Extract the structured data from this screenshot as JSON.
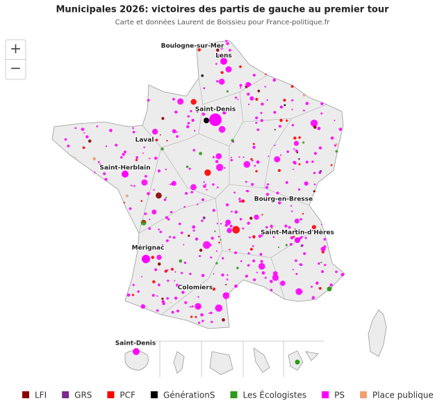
{
  "header": {
    "title": "Municipales 2026: victoires des partis de gauche au premier tour",
    "subtitle": "Carte et données Laurent de Boissieu pour France-politique.fr"
  },
  "controls": {
    "zoom_in": "+",
    "zoom_out": "−"
  },
  "labels": [
    "Boulogne-sur-Mer",
    "Lens",
    "Saint-Denis",
    "Laval",
    "Saint-Herblain",
    "Bourg-en-Bresse",
    "Saint-Martin-d'Hères",
    "Mérignac",
    "Colomiers",
    "Saint-Denis"
  ],
  "legend": [
    {
      "label": "LFI",
      "color": "#8b0000"
    },
    {
      "label": "GRS",
      "color": "#7b2a8e"
    },
    {
      "label": "PCF",
      "color": "#ff0000"
    },
    {
      "label": "GénérationS",
      "color": "#000000"
    },
    {
      "label": "Les Écologistes",
      "color": "#2e9a1a"
    },
    {
      "label": "PS",
      "color": "#ff00ff"
    },
    {
      "label": "Place publique",
      "color": "#f0a070"
    }
  ]
}
